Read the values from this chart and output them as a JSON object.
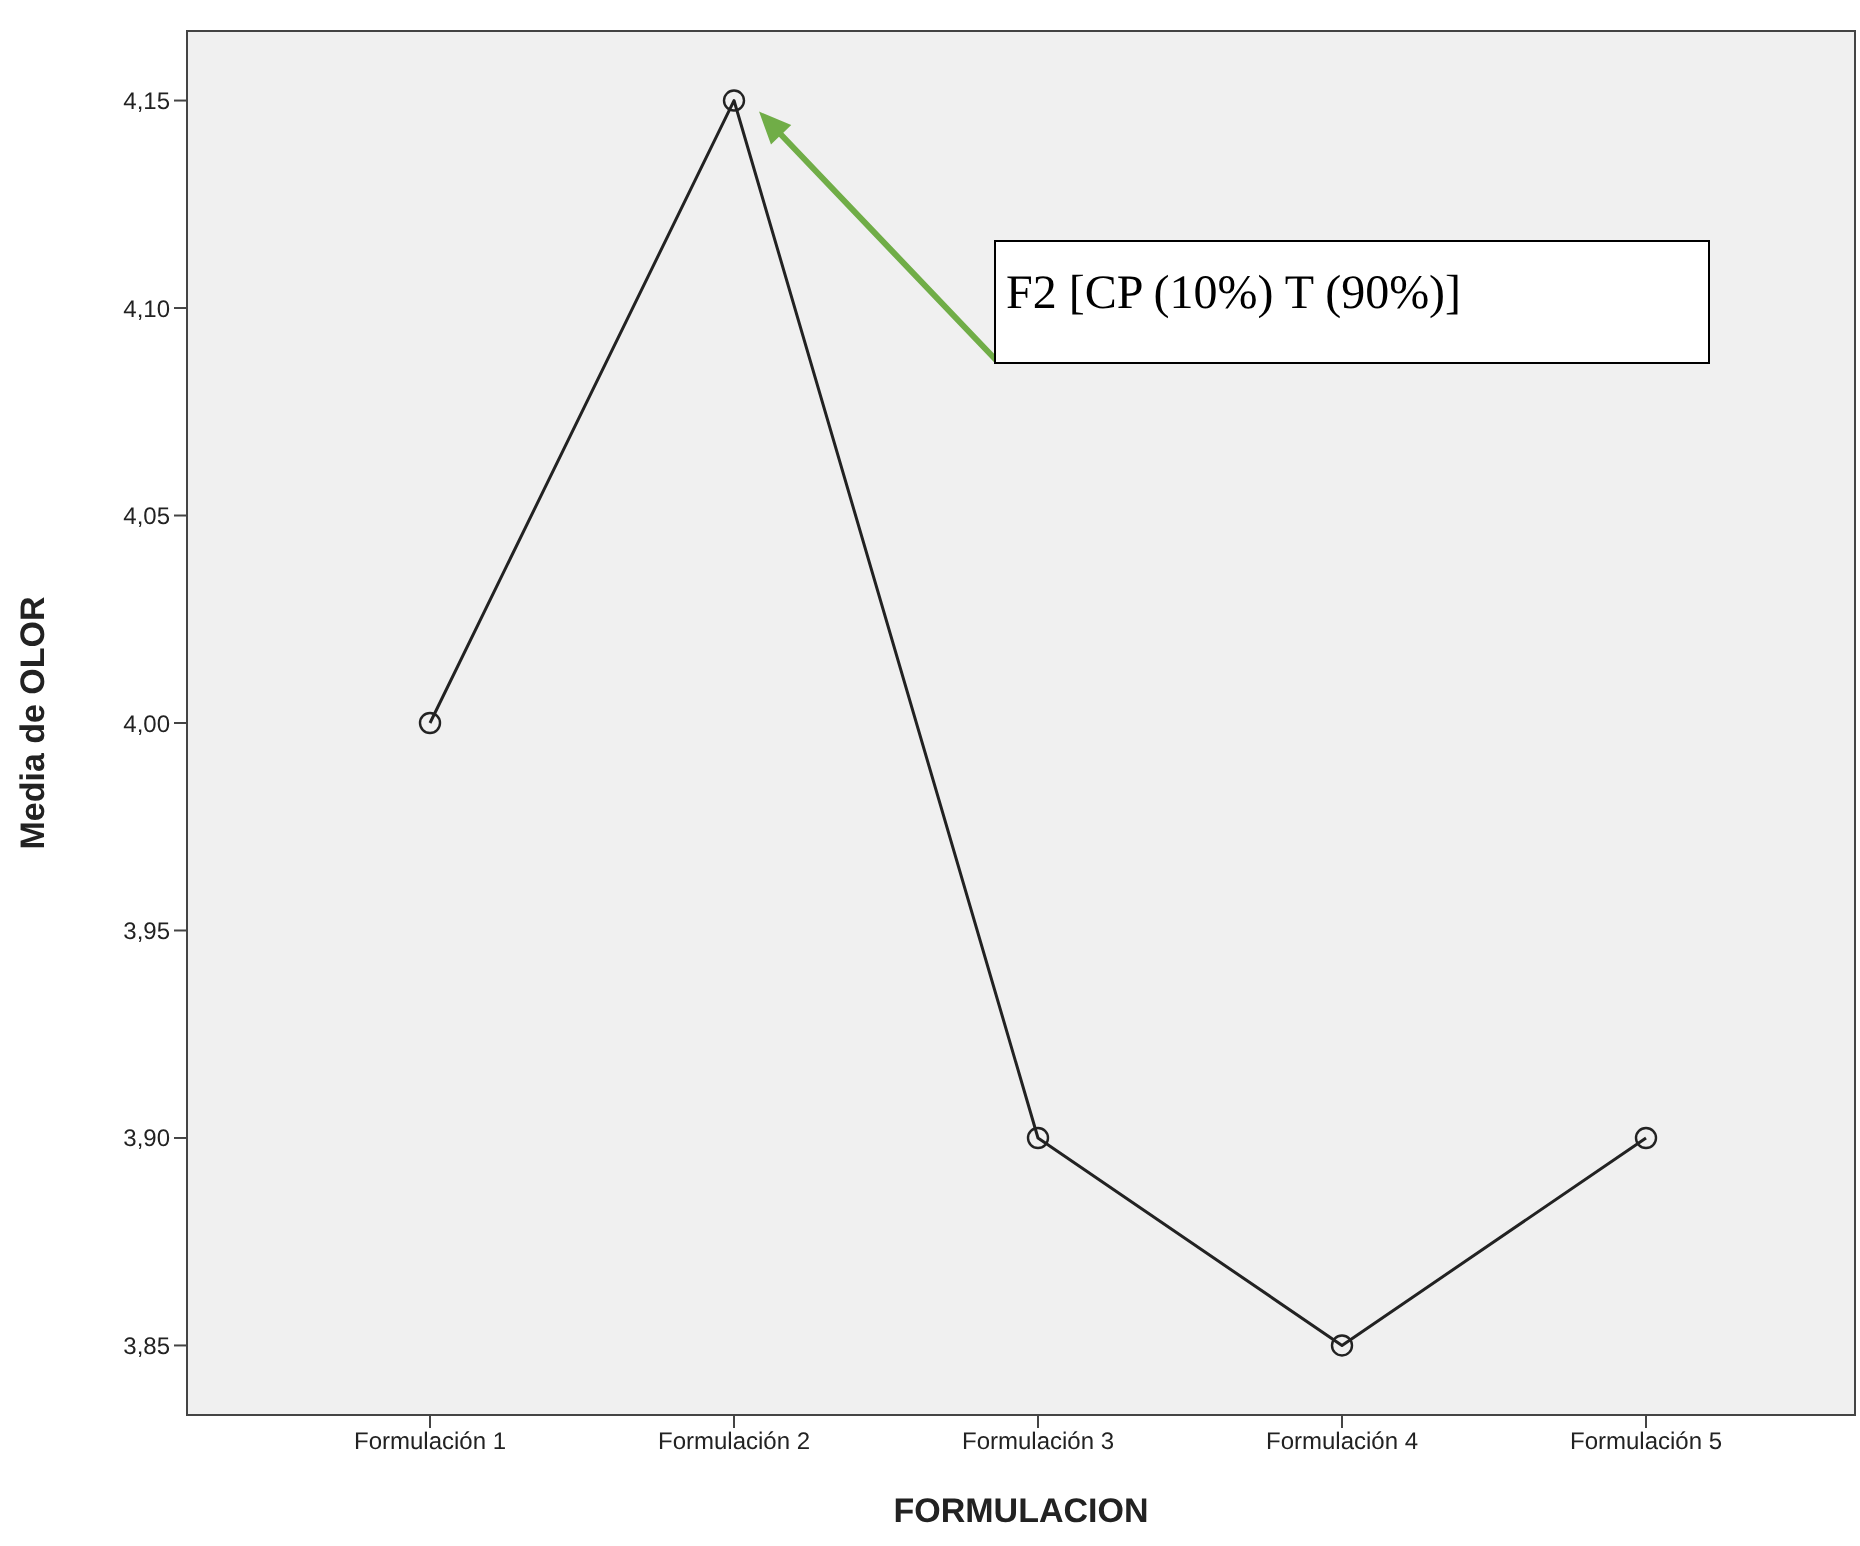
{
  "chart_data": {
    "type": "line",
    "xlabel": "FORMULACION",
    "ylabel": "Media de OLOR",
    "categories": [
      "Formulación 1",
      "Formulación 2",
      "Formulación 3",
      "Formulación 4",
      "Formulación 5"
    ],
    "series": [
      {
        "color": "#222222",
        "values": [
          4.0,
          4.15,
          3.9,
          3.85,
          3.9
        ]
      }
    ],
    "ylim": [
      3.833,
      4.167
    ],
    "yticks": [
      {
        "value": 3.85,
        "label": "3,85"
      },
      {
        "value": 3.9,
        "label": "3,90"
      },
      {
        "value": 3.95,
        "label": "3,95"
      },
      {
        "value": 4.0,
        "label": "4,00"
      },
      {
        "value": 4.05,
        "label": "4,05"
      },
      {
        "value": 4.1,
        "label": "4,10"
      },
      {
        "value": 4.15,
        "label": "4,15"
      }
    ],
    "marker": "circle",
    "line_style": "solid",
    "annotations": [
      "F2 [CP (10%) T (90%)]"
    ]
  }
}
